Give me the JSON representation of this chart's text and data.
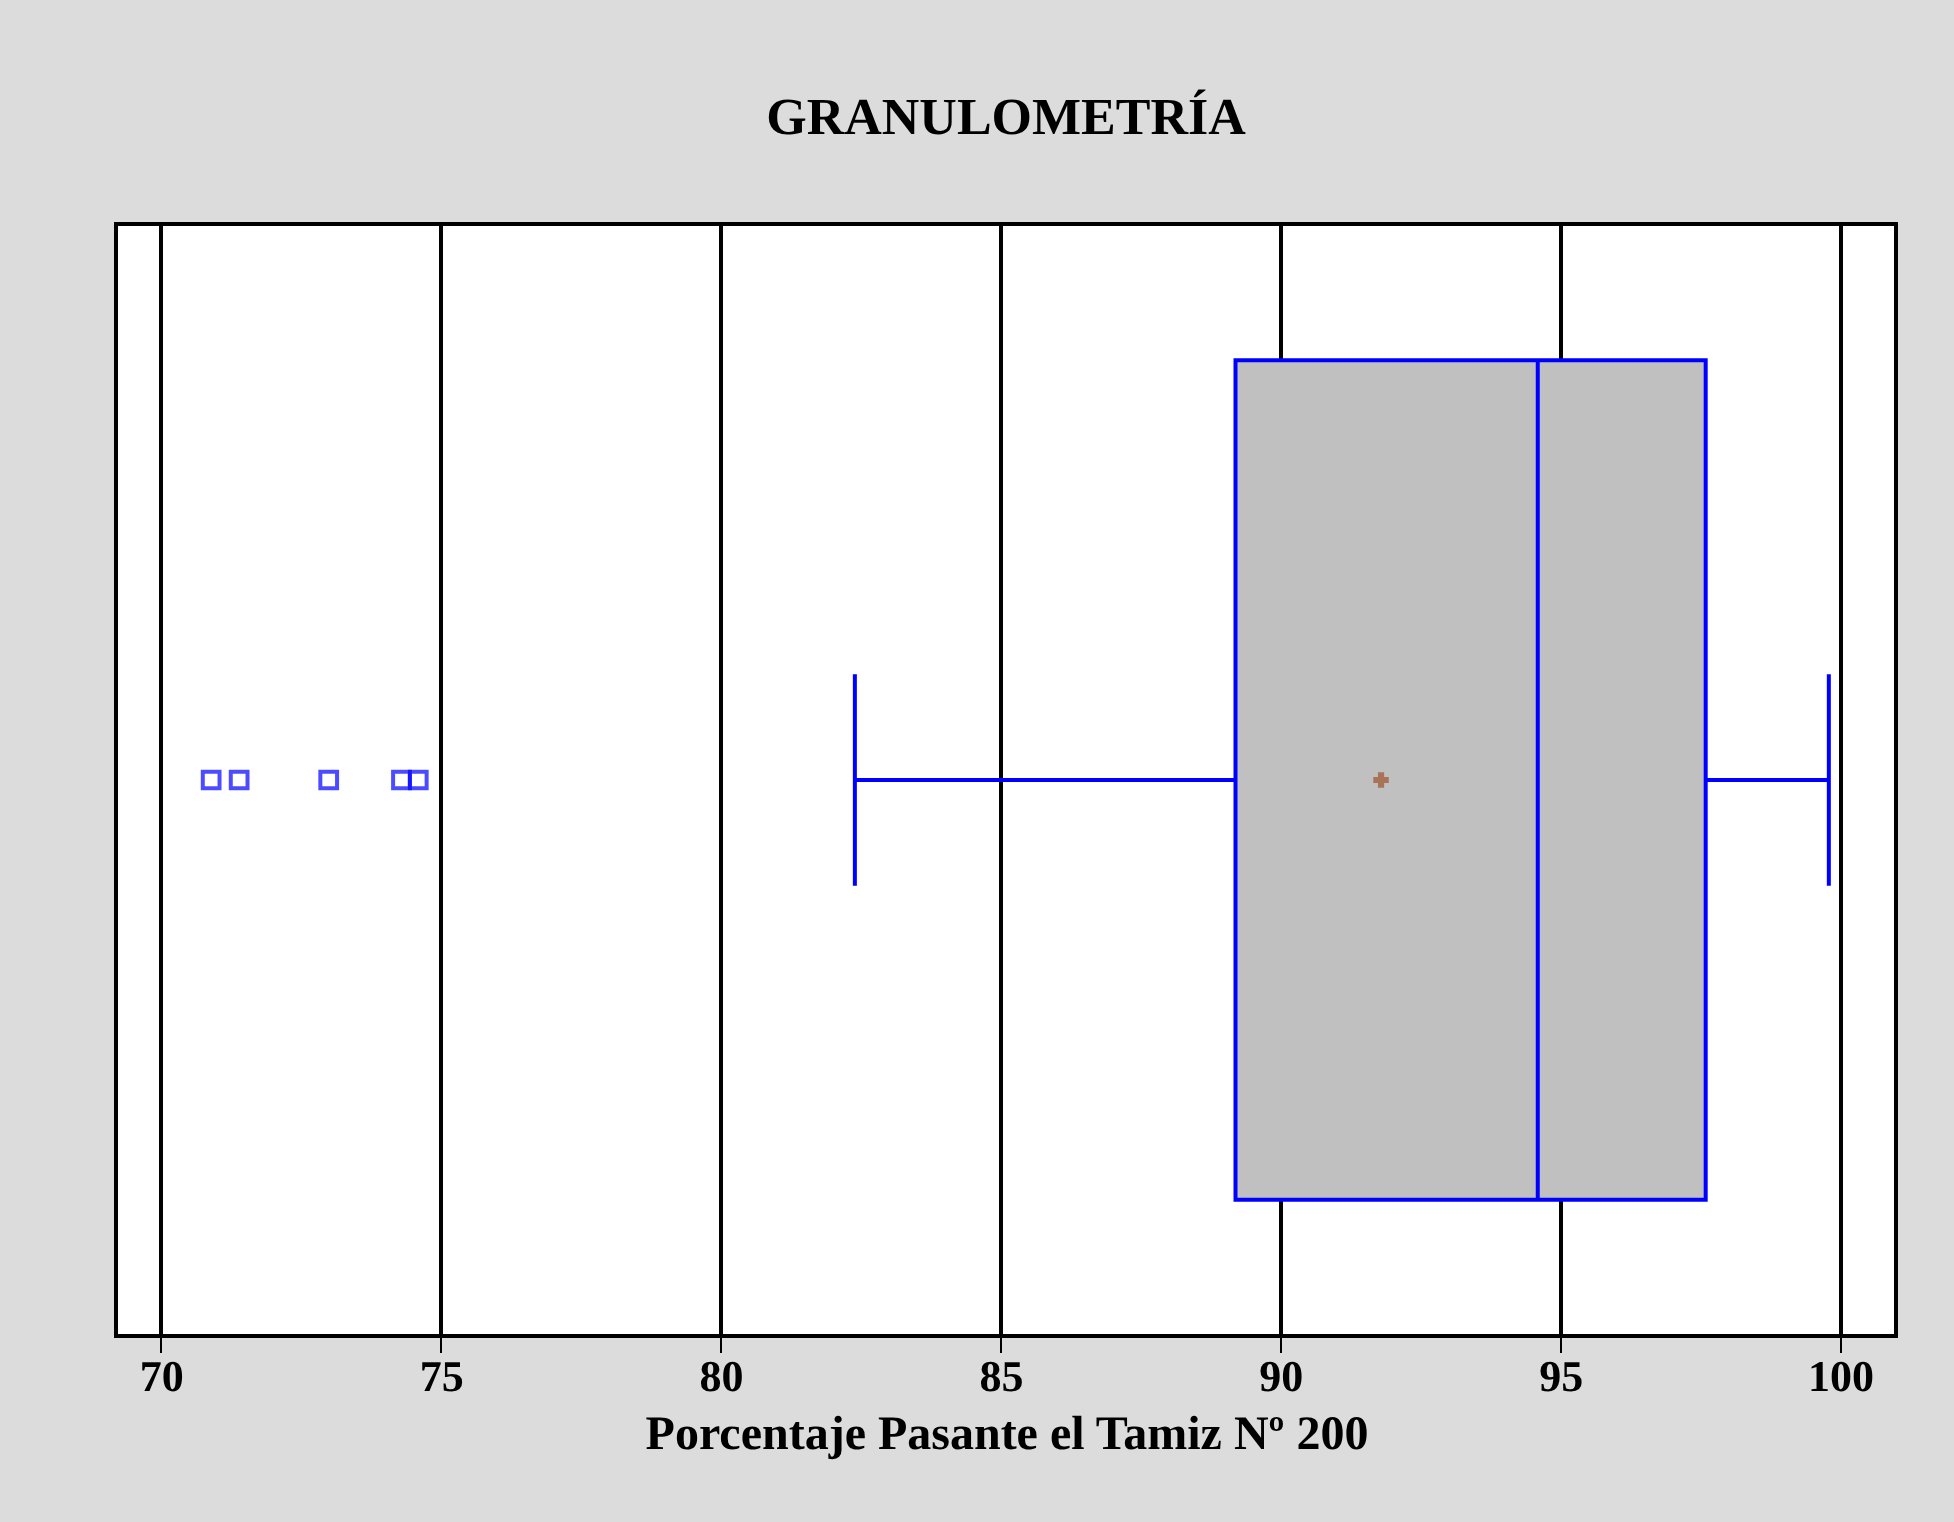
{
  "chart_data": {
    "type": "box",
    "title": "GRANULOMETRÍA",
    "xlabel": "Porcentaje Pasante el Tamiz Nº 200",
    "orientation": "horizontal",
    "categories": [
      null
    ],
    "series": [
      {
        "color": "#0000ff",
        "boxes": [
          {
            "low": 82.4,
            "q1": 89.2,
            "median": 94.6,
            "q3": 97.6,
            "high": 99.8,
            "mean": 91.8,
            "outliers": [
              70.9,
              71.4,
              73.0,
              74.3,
              74.6
            ]
          }
        ]
      }
    ],
    "xlim": [
      69.2,
      101.0
    ],
    "xticks": [
      70,
      75,
      80,
      85,
      90,
      95,
      100
    ],
    "grid": "x"
  }
}
